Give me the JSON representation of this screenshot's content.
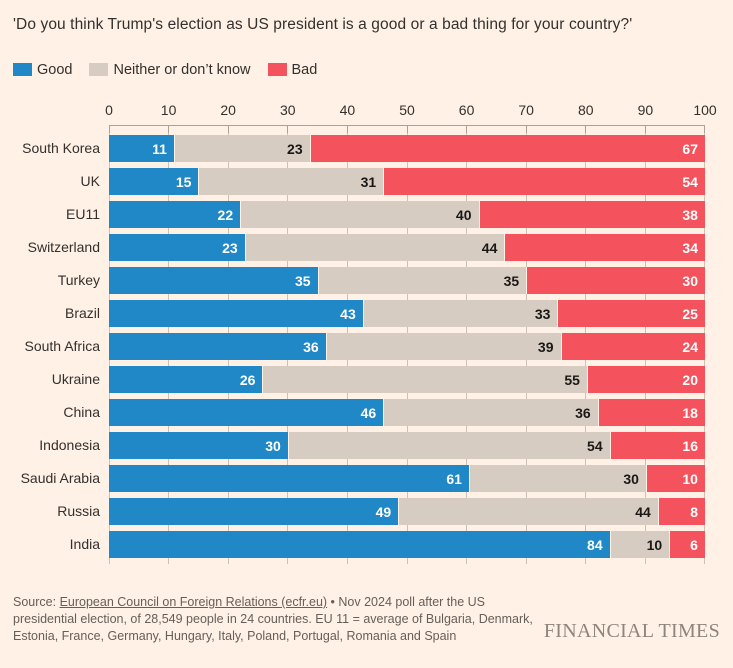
{
  "title": "'Do you think Trump's election as US president is a good or a bad thing for your country?'",
  "legend": [
    {
      "label": "Good",
      "color": "#2088C7"
    },
    {
      "label": "Neither or don’t know",
      "color": "#D7CCC1"
    },
    {
      "label": "Bad",
      "color": "#F4525C"
    }
  ],
  "chart_data": {
    "type": "bar",
    "stacked": true,
    "orientation": "horizontal",
    "title": "'Do you think Trump's election as US president is a good or a bad thing for your country?'",
    "xlabel": "",
    "ylabel": "",
    "xlim": [
      0,
      100
    ],
    "xticks": [
      0,
      10,
      20,
      30,
      40,
      50,
      60,
      70,
      80,
      90,
      100
    ],
    "legend_position": "top",
    "grid": "vertical",
    "categories": [
      "South Korea",
      "UK",
      "EU11",
      "Switzerland",
      "Turkey",
      "Brazil",
      "South Africa",
      "Ukraine",
      "China",
      "Indonesia",
      "Saudi Arabia",
      "Russia",
      "India"
    ],
    "series": [
      {
        "name": "Good",
        "color": "#2088C7",
        "value_label_color": "#FFFFFF",
        "values": [
          11,
          15,
          22,
          23,
          35,
          43,
          36,
          26,
          46,
          30,
          61,
          49,
          84
        ]
      },
      {
        "name": "Neither or don’t know",
        "color": "#D7CCC1",
        "value_label_color": "#1A1817",
        "values": [
          23,
          31,
          40,
          44,
          35,
          33,
          39,
          55,
          36,
          54,
          30,
          44,
          10
        ]
      },
      {
        "name": "Bad",
        "color": "#F4525C",
        "value_label_color": "#FFFFFF",
        "values": [
          67,
          54,
          38,
          34,
          30,
          25,
          24,
          20,
          18,
          16,
          10,
          8,
          6
        ]
      }
    ]
  },
  "footer": {
    "source_prefix": "Source: ",
    "source_link": "European Council on Foreign Relations (ecfr.eu)",
    "source_rest": " • Nov 2024 poll after the US presidential election, of 28,549 people in 24 countries. EU 11 = average of Bulgaria, Denmark, Estonia, France, Germany, Hungary, Italy, Poland, Portugal, Romania and Spain",
    "brand": "FINANCIAL TIMES"
  },
  "colors": {
    "background": "#FFF1E5",
    "good": "#2088C7",
    "neutral": "#D7CCC1",
    "bad": "#F4525C",
    "gridline": "#CCC1B7",
    "axis": "#A9A097",
    "text": "#33302E",
    "footer_text": "#655F5A",
    "brand_text": "#8D857D"
  }
}
